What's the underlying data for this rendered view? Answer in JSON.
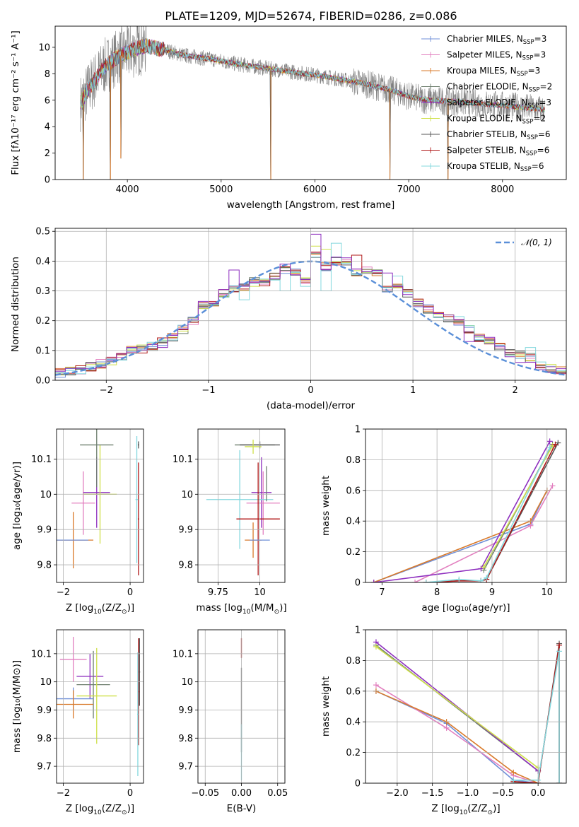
{
  "figure": {
    "title": "PLATE=1209, MJD=52674, FIBERID=0286, z=0.086"
  },
  "palette": {
    "Chabrier MILES": "#6f8fd8",
    "Salpeter MILES": "#e27fbf",
    "Kroupa MILES": "#d97a2a",
    "Chabrier ELODIE": "#6e7f6e",
    "Salpeter ELODIE": "#8e2fbf",
    "Kroupa ELODIE": "#cfe04a",
    "Chabrier STELIB": "#555555",
    "Salpeter STELIB": "#b01818",
    "Kroupa STELIB": "#84d8de",
    "data": "#808080",
    "gaussian": "#5a8fd8"
  },
  "chart_data": [
    {
      "type": "line",
      "id": "spectrum",
      "xlabel": "wavelength [Angstrom, rest frame]",
      "ylabel": "Flux [fλ10⁻¹⁷ erg cm⁻² s⁻¹ A⁻¹]",
      "xlim": [
        3230,
        8680
      ],
      "ylim": [
        0,
        11.6
      ],
      "xticks": [
        4000,
        5000,
        6000,
        7000,
        8000
      ],
      "yticks": [
        0,
        2,
        4,
        6,
        8,
        10
      ],
      "legend_position": "upper-right",
      "legend": [
        {
          "text": "Chabrier MILES, N",
          "sub": "SSP",
          "n": "=3",
          "key": "Chabrier MILES"
        },
        {
          "text": "Salpeter MILES, N",
          "sub": "SSP",
          "n": "=3",
          "key": "Salpeter MILES"
        },
        {
          "text": "Kroupa MILES, N",
          "sub": "SSP",
          "n": "=3",
          "key": "Kroupa MILES"
        },
        {
          "text": "Chabrier ELODIE, N",
          "sub": "SSP",
          "n": "=2",
          "key": "Chabrier ELODIE"
        },
        {
          "text": "Salpeter ELODIE, N",
          "sub": "SSP",
          "n": "=3",
          "key": "Salpeter ELODIE"
        },
        {
          "text": "Kroupa ELODIE, N",
          "sub": "SSP",
          "n": "=2",
          "key": "Kroupa ELODIE"
        },
        {
          "text": "Chabrier STELIB, N",
          "sub": "SSP",
          "n": "=6",
          "key": "Chabrier STELIB"
        },
        {
          "text": "Salpeter STELIB, N",
          "sub": "SSP",
          "n": "=6",
          "key": "Salpeter STELIB"
        },
        {
          "text": "Kroupa STELIB, N",
          "sub": "SSP",
          "n": "=6",
          "key": "Kroupa STELIB"
        }
      ],
      "data_range": [
        3500,
        8450
      ],
      "model_anchors": {
        "x": [
          3500,
          3600,
          3750,
          3900,
          4000,
          4100,
          4200,
          4400,
          4600,
          4900,
          5200,
          5500,
          5800,
          6100,
          6500,
          6800,
          7000,
          7200,
          7500,
          8000,
          8450
        ],
        "y": [
          5.8,
          7.0,
          8.5,
          9.3,
          9.6,
          9.9,
          10.1,
          9.8,
          9.4,
          9.1,
          8.7,
          8.4,
          8.1,
          7.8,
          7.3,
          6.8,
          6.3,
          6.0,
          5.9,
          5.6,
          5.3
        ]
      },
      "dips": [
        {
          "x": 3530,
          "to": 0.0
        },
        {
          "x": 3820,
          "to": 0.0
        },
        {
          "x": 3930,
          "to": 1.6
        },
        {
          "x": 5530,
          "to": 0.0
        },
        {
          "x": 6800,
          "to": 0.0
        },
        {
          "x": 7420,
          "to": 0.0
        }
      ]
    },
    {
      "type": "histogram",
      "id": "residuals",
      "xlabel": "(data-model)/error",
      "ylabel": "Normed distribution",
      "xlim": [
        -2.5,
        2.5
      ],
      "ylim": [
        0,
        0.51
      ],
      "xticks": [
        -2,
        -1,
        0,
        1,
        2
      ],
      "yticks": [
        0.0,
        0.1,
        0.2,
        0.3,
        0.4,
        0.5
      ],
      "legend_position": "upper-right",
      "legend": [
        {
          "text": "𝒩(0, 1)",
          "key": "gaussian"
        }
      ],
      "bin_width": 0.1,
      "base_density": [
        0.025,
        0.03,
        0.035,
        0.045,
        0.055,
        0.065,
        0.08,
        0.1,
        0.105,
        0.115,
        0.13,
        0.145,
        0.17,
        0.2,
        0.255,
        0.26,
        0.29,
        0.31,
        0.31,
        0.33,
        0.33,
        0.35,
        0.37,
        0.36,
        0.33,
        0.42,
        0.38,
        0.4,
        0.4,
        0.36,
        0.37,
        0.36,
        0.31,
        0.31,
        0.29,
        0.26,
        0.24,
        0.22,
        0.21,
        0.2,
        0.17,
        0.14,
        0.13,
        0.11,
        0.09,
        0.085,
        0.075,
        0.05,
        0.04,
        0.03
      ],
      "overlays": [
        {
          "key": "Salpeter ELODIE",
          "bins": [
            2,
            10,
            17,
            22,
            25,
            32,
            40,
            45
          ],
          "values": [
            0.04,
            0.11,
            0.37,
            0.39,
            0.49,
            0.36,
            0.13,
            0.06
          ]
        },
        {
          "key": "Kroupa STELIB",
          "bins": [
            18,
            22,
            26,
            27,
            30,
            33,
            46
          ],
          "values": [
            0.27,
            0.3,
            0.3,
            0.46,
            0.36,
            0.35,
            0.11
          ]
        },
        {
          "key": "Kroupa ELODIE",
          "bins": [
            25,
            26
          ],
          "values": [
            0.45,
            0.44
          ]
        },
        {
          "key": "Salpeter STELIB",
          "bins": [
            29,
            31
          ],
          "values": [
            0.42,
            0.36
          ]
        }
      ]
    },
    {
      "type": "errorbar",
      "id": "age-vs-Z",
      "xlabel_prefix": "Z [log",
      "xlabel_suffix": "(Z/Z",
      "ylabel": "age  [log₁₀(age/yr)]",
      "xlim": [
        -2.2,
        0.4
      ],
      "ylim": [
        9.75,
        10.185
      ],
      "xticks": [
        -2,
        0
      ],
      "yticks": [
        9.8,
        9.9,
        10.0,
        10.1
      ],
      "points": [
        {
          "key": "Kroupa MILES",
          "x": -1.7,
          "y": 9.87,
          "xerr": 0.6,
          "yerr": 0.08
        },
        {
          "key": "Chabrier MILES",
          "x": -1.8,
          "y": 9.87,
          "xerr": 0.55,
          "yerr": 0.0
        },
        {
          "key": "Salpeter MILES",
          "x": -1.4,
          "y": 9.975,
          "xerr": 0.35,
          "yerr": 0.09
        },
        {
          "key": "Salpeter ELODIE",
          "x": -1.0,
          "y": 10.005,
          "xerr": 0.4,
          "yerr": 0.1
        },
        {
          "key": "Kroupa ELODIE",
          "x": -0.9,
          "y": 10.0,
          "xerr": 0.5,
          "yerr": 0.14
        },
        {
          "key": "Chabrier ELODIE",
          "x": -1.0,
          "y": 10.14,
          "xerr": 0.5,
          "yerr": 0.12
        },
        {
          "key": "Chabrier STELIB",
          "x": 0.25,
          "y": 10.14,
          "xerr": 0.02,
          "yerr": 0.01
        },
        {
          "key": "Salpeter STELIB",
          "x": 0.25,
          "y": 9.93,
          "xerr": 0.02,
          "yerr": 0.16
        },
        {
          "key": "Kroupa STELIB",
          "x": 0.2,
          "y": 9.985,
          "xerr": 0.04,
          "yerr": 0.18
        }
      ]
    },
    {
      "type": "errorbar",
      "id": "age-vs-mass",
      "xlabel_prefix": "mass [log",
      "xlabel_suffix": "(M/M",
      "ylabel": "",
      "xlim": [
        9.63,
        10.15
      ],
      "ylim": [
        9.75,
        10.185
      ],
      "xticks": [
        9.75,
        10.0
      ],
      "ytick_labels_show": true,
      "yticks": [
        9.8,
        9.9,
        10.0,
        10.1
      ],
      "points": [
        {
          "key": "Chabrier ELODIE",
          "x": 9.97,
          "y": 10.14,
          "xerr": 0.12,
          "yerr": 0.0
        },
        {
          "key": "Chabrier STELIB",
          "x": 10.0,
          "y": 10.14,
          "xerr": 0.12,
          "yerr": 0.01
        },
        {
          "key": "Kroupa ELODIE",
          "x": 9.96,
          "y": 10.135,
          "xerr": 0.05,
          "yerr": 0.02
        },
        {
          "key": "Salpeter ELODIE",
          "x": 10.01,
          "y": 10.005,
          "xerr": 0.06,
          "yerr": 0.1
        },
        {
          "key": "Salpeter MILES",
          "x": 10.02,
          "y": 9.975,
          "xerr": 0.1,
          "yerr": 0.09
        },
        {
          "key": "Kroupa STELIB",
          "x": 9.88,
          "y": 9.985,
          "xerr": 0.2,
          "yerr": 0.14
        },
        {
          "key": "Salpeter STELIB",
          "x": 9.99,
          "y": 9.93,
          "xerr": 0.13,
          "yerr": 0.16
        },
        {
          "key": "Kroupa MILES",
          "x": 9.96,
          "y": 9.87,
          "xerr": 0.05,
          "yerr": 0.05
        },
        {
          "key": "Chabrier MILES",
          "x": 10.0,
          "y": 9.87,
          "xerr": 0.06,
          "yerr": 0.0
        },
        {
          "key": "Chabrier ELODIE",
          "x": 10.04,
          "y": 10.03,
          "xerr": 0.0,
          "yerr": 0.05
        }
      ]
    },
    {
      "type": "line",
      "id": "massweight-vs-age",
      "xlabel": "age  [log₁₀(age/yr)]",
      "ylabel": "mass weight",
      "xlim": [
        6.7,
        10.35
      ],
      "ylim": [
        0,
        1.0
      ],
      "xticks": [
        7,
        8,
        9,
        10
      ],
      "yticks": [
        0.0,
        0.2,
        0.4,
        0.6,
        0.8,
        1.0
      ],
      "series": [
        {
          "key": "Chabrier MILES",
          "x": [
            6.85,
            9.7,
            10.0
          ],
          "y": [
            0.0,
            0.38,
            0.6
          ]
        },
        {
          "key": "Salpeter MILES",
          "x": [
            7.6,
            9.7,
            10.1
          ],
          "y": [
            0.0,
            0.37,
            0.63
          ]
        },
        {
          "key": "Kroupa MILES",
          "x": [
            6.85,
            9.7,
            10.0
          ],
          "y": [
            0.0,
            0.4,
            0.6
          ]
        },
        {
          "key": "Chabrier ELODIE",
          "x": [
            8.85,
            10.1
          ],
          "y": [
            0.08,
            0.9
          ]
        },
        {
          "key": "Salpeter ELODIE",
          "x": [
            6.85,
            8.8,
            10.05
          ],
          "y": [
            0.0,
            0.09,
            0.92
          ]
        },
        {
          "key": "Kroupa ELODIE",
          "x": [
            8.85,
            10.1
          ],
          "y": [
            0.1,
            0.89
          ]
        },
        {
          "key": "Chabrier STELIB",
          "x": [
            7.8,
            8.4,
            8.8,
            8.9,
            10.2
          ],
          "y": [
            0.0,
            0.01,
            0.01,
            0.02,
            0.91
          ]
        },
        {
          "key": "Salpeter STELIB",
          "x": [
            7.8,
            8.4,
            8.8,
            8.9,
            10.15
          ],
          "y": [
            0.0,
            0.01,
            0.01,
            0.02,
            0.9
          ]
        },
        {
          "key": "Kroupa STELIB",
          "x": [
            7.8,
            8.4,
            8.8,
            8.9,
            10.05
          ],
          "y": [
            0.0,
            0.02,
            0.01,
            0.03,
            0.88
          ]
        }
      ]
    },
    {
      "type": "errorbar",
      "id": "mass-vs-Z",
      "xlabel_prefix": "Z [log",
      "xlabel_suffix": "(Z/Z",
      "ylabel": "mass [log₁₀(M/M⊙)]",
      "xlim": [
        -2.2,
        0.4
      ],
      "ylim": [
        9.64,
        10.185
      ],
      "xticks": [
        -2,
        0
      ],
      "yticks": [
        9.7,
        9.8,
        9.9,
        10.0,
        10.1
      ],
      "points": [
        {
          "key": "Salpeter MILES",
          "x": -1.7,
          "y": 10.08,
          "xerr": 0.4,
          "yerr": 0.08
        },
        {
          "key": "Salpeter ELODIE",
          "x": -1.2,
          "y": 10.02,
          "xerr": 0.4,
          "yerr": 0.08
        },
        {
          "key": "Chabrier ELODIE",
          "x": -1.1,
          "y": 9.99,
          "xerr": 0.5,
          "yerr": 0.12
        },
        {
          "key": "Kroupa ELODIE",
          "x": -1.0,
          "y": 9.95,
          "xerr": 0.6,
          "yerr": 0.17
        },
        {
          "key": "Chabrier MILES",
          "x": -1.7,
          "y": 9.94,
          "xerr": 0.6,
          "yerr": 0.04
        },
        {
          "key": "Kroupa MILES",
          "x": -1.7,
          "y": 9.92,
          "xerr": 0.6,
          "yerr": 0.05
        },
        {
          "key": "Chabrier STELIB",
          "x": 0.28,
          "y": 10.035,
          "xerr": 0.02,
          "yerr": 0.12
        },
        {
          "key": "Salpeter STELIB",
          "x": 0.25,
          "y": 9.965,
          "xerr": 0.03,
          "yerr": 0.19
        },
        {
          "key": "Kroupa STELIB",
          "x": 0.23,
          "y": 9.885,
          "xerr": 0.02,
          "yerr": 0.22
        }
      ]
    },
    {
      "type": "errorbar",
      "id": "mass-vs-EBV",
      "xlabel": "E(B-V)",
      "ylabel": "",
      "xlim": [
        -0.06,
        0.06
      ],
      "ylim": [
        9.64,
        10.185
      ],
      "xticks": [
        -0.05,
        0.0,
        0.05
      ],
      "xtick_labels": [
        "−0.05",
        "0.00",
        "0.05"
      ],
      "yticks": [
        9.7,
        9.8,
        9.9,
        10.0,
        10.1
      ],
      "points": [
        {
          "key": "Salpeter STELIB",
          "x": 0.0,
          "y": 10.12,
          "xerr": 0.0,
          "yerr": 0.035
        },
        {
          "key": "Chabrier STELIB",
          "x": 0.0,
          "y": 9.9,
          "xerr": 0.0,
          "yerr": 0.15
        },
        {
          "key": "Kroupa STELIB",
          "x": 0.0,
          "y": 9.75,
          "xerr": 0.0,
          "yerr": 0.1
        }
      ]
    },
    {
      "type": "line",
      "id": "massweight-vs-Z",
      "xlabel_prefix": "Z [log",
      "xlabel_suffix": "(Z/Z",
      "ylabel": "mass weight",
      "xlim": [
        -2.45,
        0.4
      ],
      "ylim": [
        0,
        1.0
      ],
      "xticks": [
        -2.0,
        -1.5,
        -1.0,
        -0.5,
        0.0
      ],
      "xtick_labels": [
        "−2.0",
        "−1.5",
        "−1.0",
        "−0.5",
        "0.0"
      ],
      "yticks": [
        0.0,
        0.2,
        0.4,
        0.6,
        0.8,
        1.0
      ],
      "series": [
        {
          "key": "Chabrier MILES",
          "x": [
            -2.3,
            -1.3,
            -0.35,
            0.0
          ],
          "y": [
            0.6,
            0.39,
            0.02,
            0.0
          ]
        },
        {
          "key": "Salpeter MILES",
          "x": [
            -2.3,
            -1.3,
            -0.35,
            0.0
          ],
          "y": [
            0.64,
            0.36,
            0.05,
            0.0
          ]
        },
        {
          "key": "Kroupa MILES",
          "x": [
            -2.3,
            -1.3,
            -0.35,
            0.0
          ],
          "y": [
            0.6,
            0.4,
            0.07,
            0.0
          ]
        },
        {
          "key": "Chabrier ELODIE",
          "x": [
            -2.3,
            0.0
          ],
          "y": [
            0.9,
            0.08
          ]
        },
        {
          "key": "Salpeter ELODIE",
          "x": [
            -2.3,
            0.0
          ],
          "y": [
            0.92,
            0.08
          ]
        },
        {
          "key": "Kroupa ELODIE",
          "x": [
            -2.3,
            0.0
          ],
          "y": [
            0.89,
            0.1
          ]
        },
        {
          "key": "Chabrier STELIB",
          "x": [
            -0.35,
            0.0,
            0.3,
            0.3
          ],
          "y": [
            0.0,
            0.0,
            0.91,
            0.0
          ]
        },
        {
          "key": "Salpeter STELIB",
          "x": [
            -0.35,
            0.0,
            0.3,
            0.3
          ],
          "y": [
            0.01,
            0.0,
            0.9,
            0.0
          ]
        },
        {
          "key": "Kroupa STELIB",
          "x": [
            -0.35,
            0.0,
            0.3,
            0.3
          ],
          "y": [
            0.02,
            0.02,
            0.86,
            0.0
          ]
        }
      ]
    }
  ]
}
